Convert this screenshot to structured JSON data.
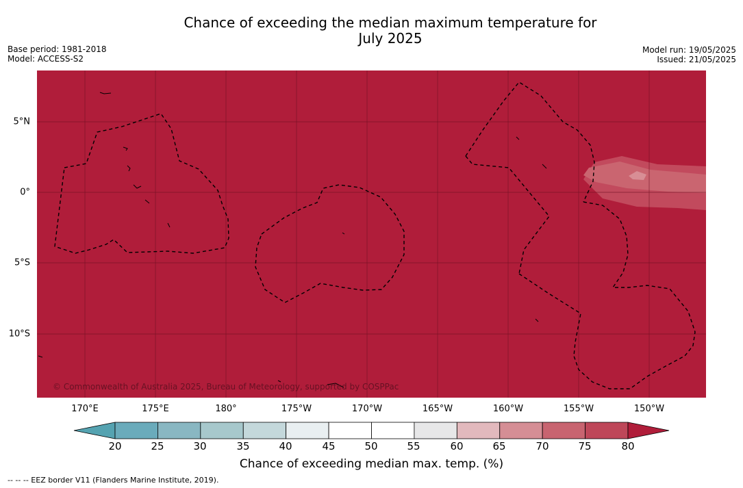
{
  "title_line1": "Chance of exceeding the median maximum temperature for",
  "title_line2": "July 2025",
  "meta_left": {
    "base_period": "Base period: 1981-2018",
    "model": "Model: ACCESS-S2"
  },
  "meta_right": {
    "model_run": "Model run: 19/05/2025",
    "issued": "Issued: 21/05/2025"
  },
  "map": {
    "lon_ticks": [
      "170°E",
      "175°E",
      "180°",
      "175°W",
      "170°W",
      "165°W",
      "160°W",
      "155°W",
      "150°W"
    ],
    "lon_values": [
      170,
      175,
      180,
      185,
      190,
      195,
      200,
      205,
      210
    ],
    "lat_ticks": [
      "5°N",
      "0°",
      "5°S",
      "10°S"
    ],
    "lat_values": [
      5,
      0,
      -5,
      -10
    ],
    "lon_range": [
      166.1,
      213.6
    ],
    "lat_range": [
      -14.5,
      8.6
    ],
    "background_category": ">80",
    "copyright": "© Commonwealth of Australia 2025, Bureau of Meteorology, supported by COSPPac"
  },
  "colorbar": {
    "ticks": [
      "20",
      "25",
      "30",
      "35",
      "40",
      "45",
      "50",
      "55",
      "60",
      "65",
      "70",
      "75",
      "80"
    ],
    "colors": {
      "under": "#55a3b1",
      "bins": [
        "#6aabbb",
        "#89b7c2",
        "#a7c8cc",
        "#c4d8db",
        "#e9eff1",
        "#ffffff",
        "#ffffff",
        "#e7e7e8",
        "#e2b9bd",
        "#d58e95",
        "#c86470",
        "#be4759"
      ],
      "over": "#b01d3a"
    },
    "label": "Chance of exceeding median max. temp. (%)"
  },
  "footnote": "--  --  -- EEZ border V11 (Flanders Marine Institute, 2019)."
}
